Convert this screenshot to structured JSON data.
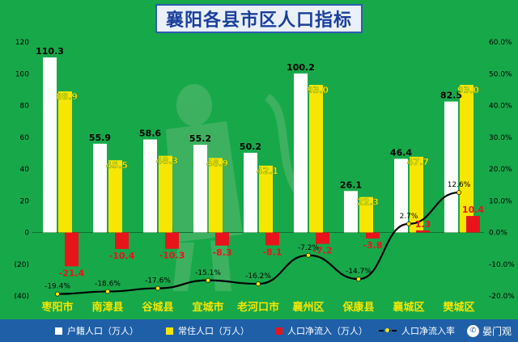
{
  "title": "襄阳各县市区人口指标",
  "legend": {
    "huji": "户籍人口（万人）",
    "changzhu": "常住人口（万人）",
    "jingliuru": "人口净流入（万人）",
    "rate": "人口净流入率"
  },
  "watermark": "晏门观",
  "colors": {
    "background": "#17a84a",
    "huji": "#ffffff",
    "changzhu": "#f7e600",
    "jingliuru": "#e8141b",
    "line": "#000000",
    "title_bg": "#eaf1fb",
    "title_text": "#1a3f9c",
    "legend_bg": "#1f5fa8"
  },
  "chart_data": {
    "type": "bar",
    "title": "襄阳各县市区人口指标",
    "categories": [
      "枣阳市",
      "南漳县",
      "谷城县",
      "宜城市",
      "老河口市",
      "襄州区",
      "保康县",
      "襄城区",
      "樊城区"
    ],
    "series": [
      {
        "name": "户籍人口（万人）",
        "type": "bar",
        "axis": "left",
        "values": [
          110.3,
          55.9,
          58.6,
          55.2,
          50.2,
          100.2,
          26.1,
          46.4,
          82.5
        ],
        "labels": [
          "110.3",
          "55.9",
          "58.6",
          "55.2",
          "50.2",
          "100.2",
          "26.1",
          "46.4",
          "82.5"
        ]
      },
      {
        "name": "常住人口（万人）",
        "type": "bar",
        "axis": "left",
        "values": [
          88.9,
          45.5,
          48.3,
          46.9,
          42.1,
          93.0,
          22.3,
          47.7,
          93.0
        ],
        "labels": [
          "88.9",
          "45.5",
          "48.3",
          "46.9",
          "42.1",
          "93.0",
          "22.3",
          "47.7",
          "93.0"
        ]
      },
      {
        "name": "人口净流入（万人）",
        "type": "bar",
        "axis": "left",
        "values": [
          -21.4,
          -10.4,
          -10.3,
          -8.3,
          -8.1,
          -7.2,
          -3.8,
          1.3,
          10.4
        ],
        "labels": [
          "-21.4",
          "-10.4",
          "-10.3",
          "-8.3",
          "-8.1",
          "-7.2",
          "-3.8",
          "1.3",
          "10.4"
        ]
      },
      {
        "name": "人口净流入率",
        "type": "line",
        "axis": "right",
        "values": [
          -19.4,
          -18.6,
          -17.6,
          -15.1,
          -16.2,
          -7.2,
          -14.7,
          2.7,
          12.6
        ],
        "labels": [
          "-19.4%",
          "-18.6%",
          "-17.6%",
          "-15.1%",
          "-16.2%",
          "-7.2%",
          "-14.7%",
          "2.7%",
          "12.6%"
        ]
      }
    ],
    "y_left": {
      "ylim": [
        -40,
        120
      ],
      "ticks": [
        "(40)",
        "(20)",
        "0",
        "20",
        "40",
        "60",
        "80",
        "100",
        "120"
      ]
    },
    "y_right": {
      "ylim": [
        -20,
        60
      ],
      "ticks": [
        "-20.0%",
        "-10.0%",
        "0.0%",
        "10.0%",
        "20.0%",
        "30.0%",
        "40.0%",
        "50.0%",
        "60.0%"
      ]
    },
    "grid": false,
    "legend_position": "bottom"
  }
}
